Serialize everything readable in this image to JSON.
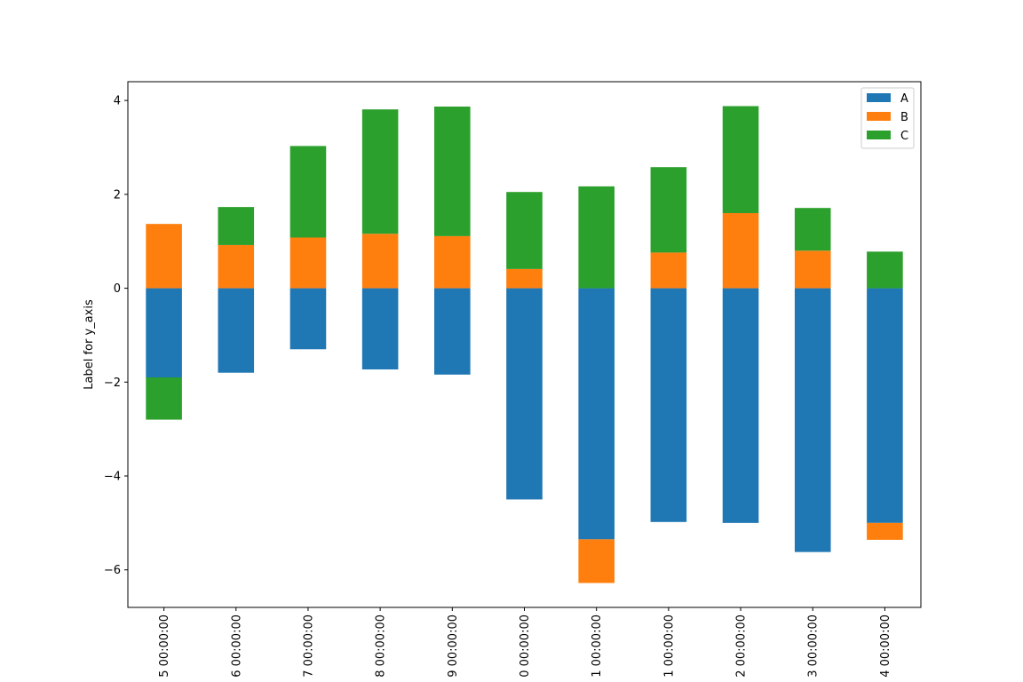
{
  "chart_data": {
    "type": "bar",
    "stacked": true,
    "title": "",
    "xlabel": "",
    "ylabel": "Label for y_axis",
    "ylim": [
      -6.8,
      4.4
    ],
    "yticks": [
      4,
      2,
      0,
      -2,
      -4,
      -6
    ],
    "ytick_labels": [
      "4",
      "2",
      "0",
      "−2",
      "−4",
      "−6"
    ],
    "categories": [
      "5 00:00:00",
      "6 00:00:00",
      "7 00:00:00",
      "8 00:00:00",
      "9 00:00:00",
      "0 00:00:00",
      "1 00:00:00",
      "1 00:00:00",
      "2 00:00:00",
      "3 00:00:00",
      "4 00:00:00"
    ],
    "series": [
      {
        "name": "A",
        "color": "#1f77b4",
        "values": [
          -1.9,
          -1.8,
          -1.3,
          -1.73,
          -1.84,
          -4.5,
          -5.35,
          -4.98,
          -5.0,
          -5.62,
          -5.0
        ]
      },
      {
        "name": "B",
        "color": "#ff7f0e",
        "values": [
          1.37,
          0.92,
          1.08,
          1.16,
          1.11,
          0.41,
          -0.93,
          0.76,
          1.6,
          0.8,
          -0.36
        ]
      },
      {
        "name": "C",
        "color": "#2ca02c",
        "values": [
          -0.9,
          0.81,
          1.95,
          2.65,
          2.76,
          1.64,
          2.17,
          1.82,
          2.28,
          0.91,
          0.78
        ]
      }
    ],
    "grid": false,
    "legend_position": "top-right"
  }
}
